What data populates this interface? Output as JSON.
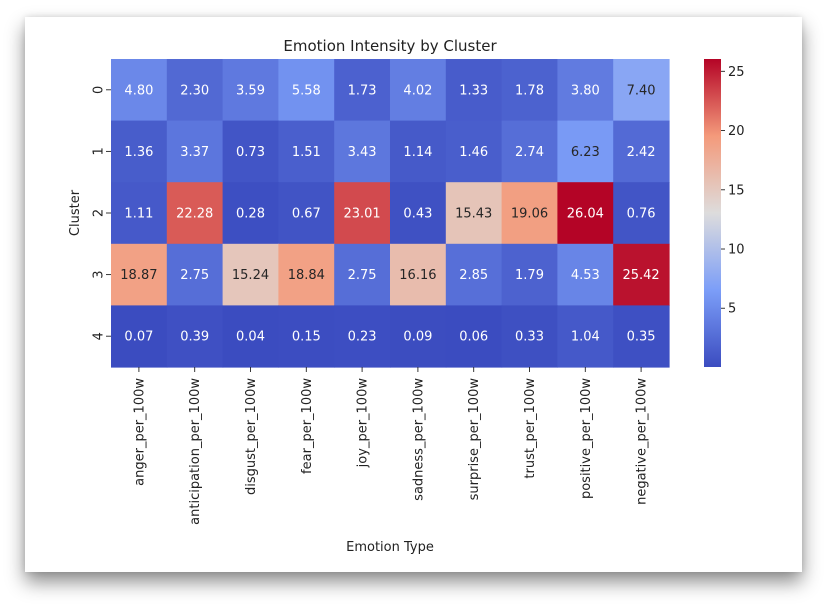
{
  "chart_data": {
    "type": "heatmap",
    "title": "Emotion Intensity by Cluster",
    "xlabel": "Emotion Type",
    "ylabel": "Cluster",
    "rows": [
      "0",
      "1",
      "2",
      "3",
      "4"
    ],
    "columns": [
      "anger_per_100w",
      "anticipation_per_100w",
      "disgust_per_100w",
      "fear_per_100w",
      "joy_per_100w",
      "sadness_per_100w",
      "surprise_per_100w",
      "trust_per_100w",
      "positive_per_100w",
      "negative_per_100w"
    ],
    "values": [
      [
        4.8,
        2.3,
        3.59,
        5.58,
        1.73,
        4.02,
        1.33,
        1.78,
        3.8,
        7.4
      ],
      [
        1.36,
        3.37,
        0.73,
        1.51,
        3.43,
        1.14,
        1.46,
        2.74,
        6.23,
        2.42
      ],
      [
        1.11,
        22.28,
        0.28,
        0.67,
        23.01,
        0.43,
        15.43,
        19.06,
        26.04,
        0.76
      ],
      [
        18.87,
        2.75,
        15.24,
        18.84,
        2.75,
        16.16,
        2.85,
        1.79,
        4.53,
        25.42
      ],
      [
        0.07,
        0.39,
        0.04,
        0.15,
        0.23,
        0.09,
        0.06,
        0.33,
        1.04,
        0.35
      ]
    ],
    "annotation_format": "0.00",
    "colormap": "coolwarm",
    "vmin": 0.04,
    "vmax": 26.04,
    "colorbar_ticks": [
      5,
      10,
      15,
      20,
      25
    ],
    "colorbar_tick_labels": [
      "5",
      "10",
      "15",
      "20",
      "25"
    ]
  }
}
